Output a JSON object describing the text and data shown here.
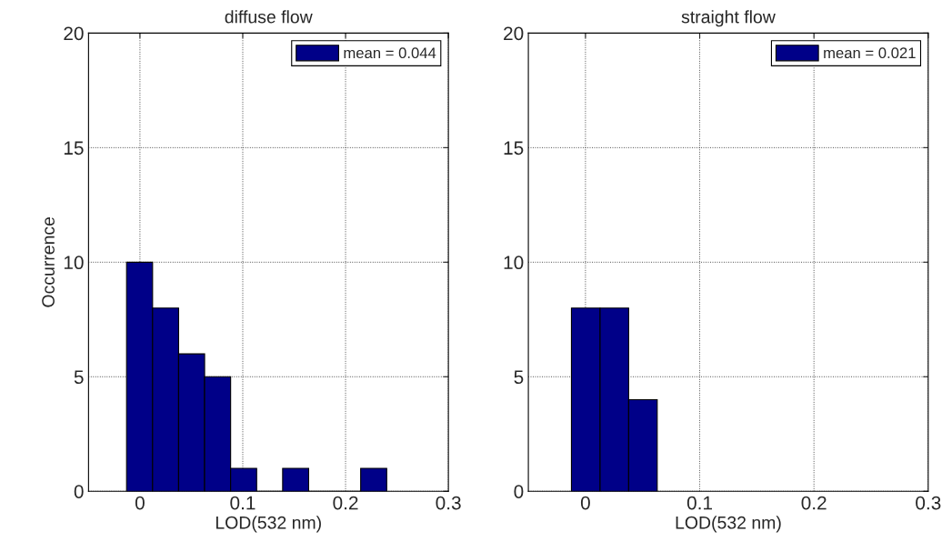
{
  "chart_data": [
    {
      "type": "histogram",
      "title": "diffuse flow",
      "xlabel": "LOD(532 nm)",
      "ylabel": "Occurrence",
      "bins": [
        -0.013,
        0.0123,
        0.0376,
        0.0629,
        0.0882,
        0.1135,
        0.1388,
        0.1641,
        0.1894,
        0.2147,
        0.24
      ],
      "series": [
        {
          "name": "mean = 0.044",
          "color": "#000088",
          "values": [
            10,
            8,
            6,
            5,
            1,
            0,
            1,
            0,
            0,
            1
          ]
        }
      ],
      "xlim": [
        -0.05,
        0.3
      ],
      "xticks": [
        0,
        0.1,
        0.2,
        0.3
      ],
      "ylim": [
        0,
        20
      ],
      "yticks": [
        0,
        5,
        10,
        15,
        20
      ],
      "grid": true,
      "legend": "top right"
    },
    {
      "type": "histogram",
      "title": "straight flow",
      "xlabel": "LOD(532 nm)",
      "bins": [
        -0.0123,
        0.0128,
        0.0378,
        0.0628
      ],
      "series": [
        {
          "name": "mean = 0.021",
          "color": "#000088",
          "values": [
            8,
            8,
            4
          ]
        }
      ],
      "xlim": [
        -0.05,
        0.3
      ],
      "xticks": [
        0,
        0.1,
        0.2,
        0.3
      ],
      "ylim": [
        0,
        20
      ],
      "yticks": [
        0,
        5,
        10,
        15,
        20
      ],
      "grid": true,
      "legend": "top right"
    }
  ]
}
